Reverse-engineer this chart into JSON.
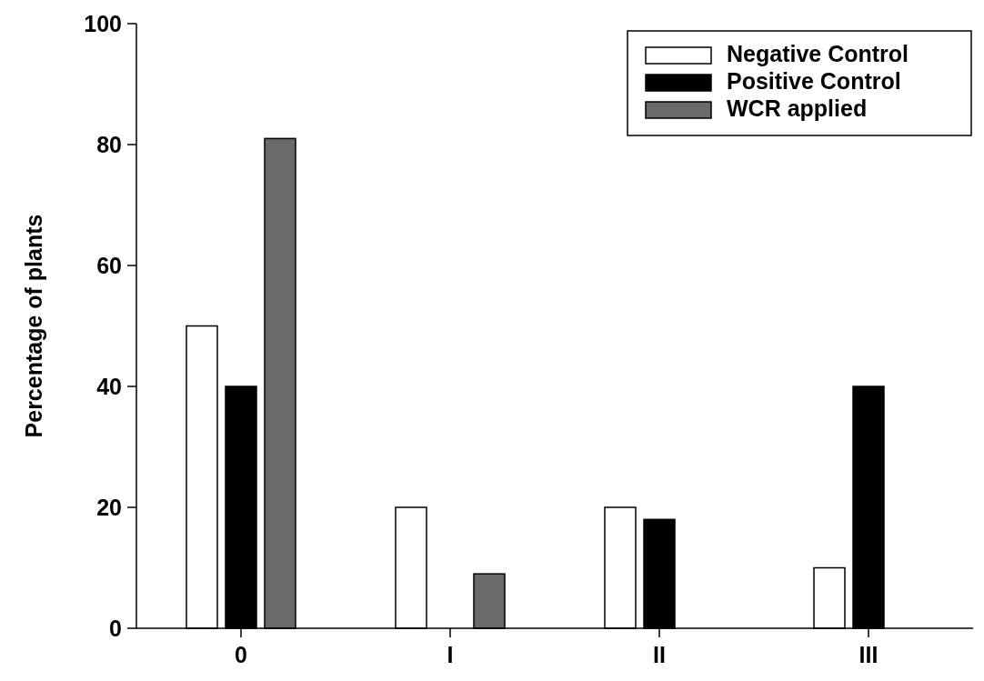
{
  "chart_data": {
    "type": "bar",
    "ylabel": "Percentage of plants",
    "categories": [
      "0",
      "I",
      "II",
      "III"
    ],
    "series": [
      {
        "name": "Negative Control",
        "color": "#ffffff",
        "values": [
          50,
          20,
          20,
          10
        ]
      },
      {
        "name": "Positive Control",
        "color": "#000000",
        "values": [
          40,
          0,
          18,
          40
        ]
      },
      {
        "name": "WCR applied",
        "color": "#696969",
        "values": [
          81,
          9,
          0,
          0
        ]
      }
    ],
    "ylim": [
      0,
      100
    ],
    "yticks": [
      0,
      20,
      40,
      60,
      80,
      100
    ],
    "legend": "top right"
  }
}
